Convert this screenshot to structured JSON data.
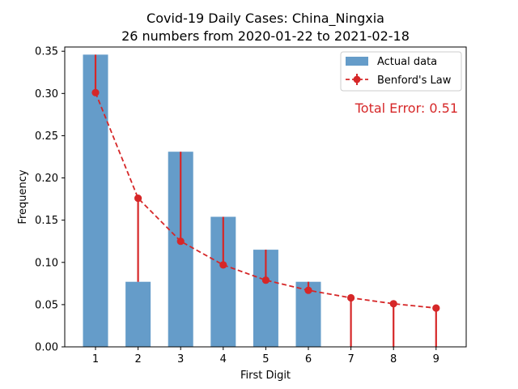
{
  "chart_data": {
    "type": "bar",
    "title": "Covid-19 Daily Cases: China_Ningxia",
    "subtitle": "26 numbers from 2020-01-22 to 2021-02-18",
    "xlabel": "First Digit",
    "ylabel": "Frequency",
    "categories": [
      "1",
      "2",
      "3",
      "4",
      "5",
      "6",
      "7",
      "8",
      "9"
    ],
    "ylim": [
      0,
      0.355
    ],
    "yticks": [
      "0.00",
      "0.05",
      "0.10",
      "0.15",
      "0.20",
      "0.25",
      "0.30",
      "0.35"
    ],
    "series": [
      {
        "name": "Actual data",
        "type": "bar",
        "color": "#4a8bbf",
        "values": [
          0.346,
          0.077,
          0.231,
          0.154,
          0.115,
          0.077,
          0.0,
          0.0,
          0.0
        ]
      },
      {
        "name": "Benford's Law",
        "type": "line-errorbar",
        "color": "#d62728",
        "values": [
          0.301,
          0.176,
          0.125,
          0.097,
          0.079,
          0.067,
          0.058,
          0.051,
          0.046
        ]
      }
    ],
    "annotation": "Total Error: 0.51",
    "legend_position": "top-right",
    "grid": false
  }
}
